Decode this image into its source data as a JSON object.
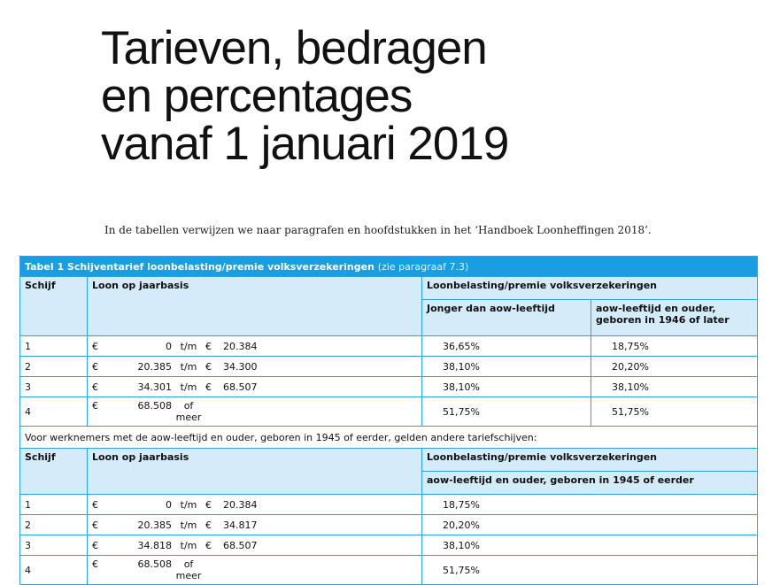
{
  "title": {
    "line1": "Tarieven, bedragen",
    "line2": "en percentages",
    "line3": "vanaf 1 januari 2019"
  },
  "intro": "In de tabellen verwijzen we naar paragrafen en hoofdstukken in het ‘Handboek Loonheffingen 2018’.",
  "table": {
    "caption": "Tabel 1   Schijventarief loonbelasting/premie volksverzekeringen",
    "caption_ref": "(zie paragraaf 7.3)",
    "headers": {
      "schijf": "Schijf",
      "loon": "Loon op jaarbasis",
      "lb": "Loonbelasting/premie volksverzekeringen",
      "jonger": "Jonger dan aow-leeftijd",
      "aow_later": "aow-leeftijd en ouder, geboren in 1946 of later"
    },
    "rows1": [
      {
        "schijf": "1",
        "cur": "€",
        "from": "0",
        "mid": "t/m",
        "cur2": "€",
        "to": "20.384",
        "p1": "36,65%",
        "p2": "18,75%"
      },
      {
        "schijf": "2",
        "cur": "€",
        "from": "20.385",
        "mid": "t/m",
        "cur2": "€",
        "to": "34.300",
        "p1": "38,10%",
        "p2": "20,20%"
      },
      {
        "schijf": "3",
        "cur": "€",
        "from": "34.301",
        "mid": "t/m",
        "cur2": "€",
        "to": "68.507",
        "p1": "38,10%",
        "p2": "38,10%"
      },
      {
        "schijf": "4",
        "cur": "€",
        "from": "68.508",
        "mid": "of meer",
        "cur2": "",
        "to": "",
        "p1": "51,75%",
        "p2": "51,75%"
      }
    ],
    "note": "Voor werknemers met de aow-leeftijd en ouder, geboren in 1945 of eerder, gelden andere tariefschijven:",
    "headers2": {
      "schijf": "Schijf",
      "loon": "Loon op jaarbasis",
      "lb": "Loonbelasting/premie volksverzekeringen",
      "aow_eerder": "aow-leeftijd en ouder, geboren in 1945 of eerder"
    },
    "rows2": [
      {
        "schijf": "1",
        "cur": "€",
        "from": "0",
        "mid": "t/m",
        "cur2": "€",
        "to": "20.384",
        "p": "18,75%"
      },
      {
        "schijf": "2",
        "cur": "€",
        "from": "20.385",
        "mid": "t/m",
        "cur2": "€",
        "to": "34.817",
        "p": "20,20%"
      },
      {
        "schijf": "3",
        "cur": "€",
        "from": "34.818",
        "mid": "t/m",
        "cur2": "€",
        "to": "68.507",
        "p": "38,10%"
      },
      {
        "schijf": "4",
        "cur": "€",
        "from": "68.508",
        "mid": "of meer",
        "cur2": "",
        "to": "",
        "p": "51,75%"
      }
    ]
  }
}
